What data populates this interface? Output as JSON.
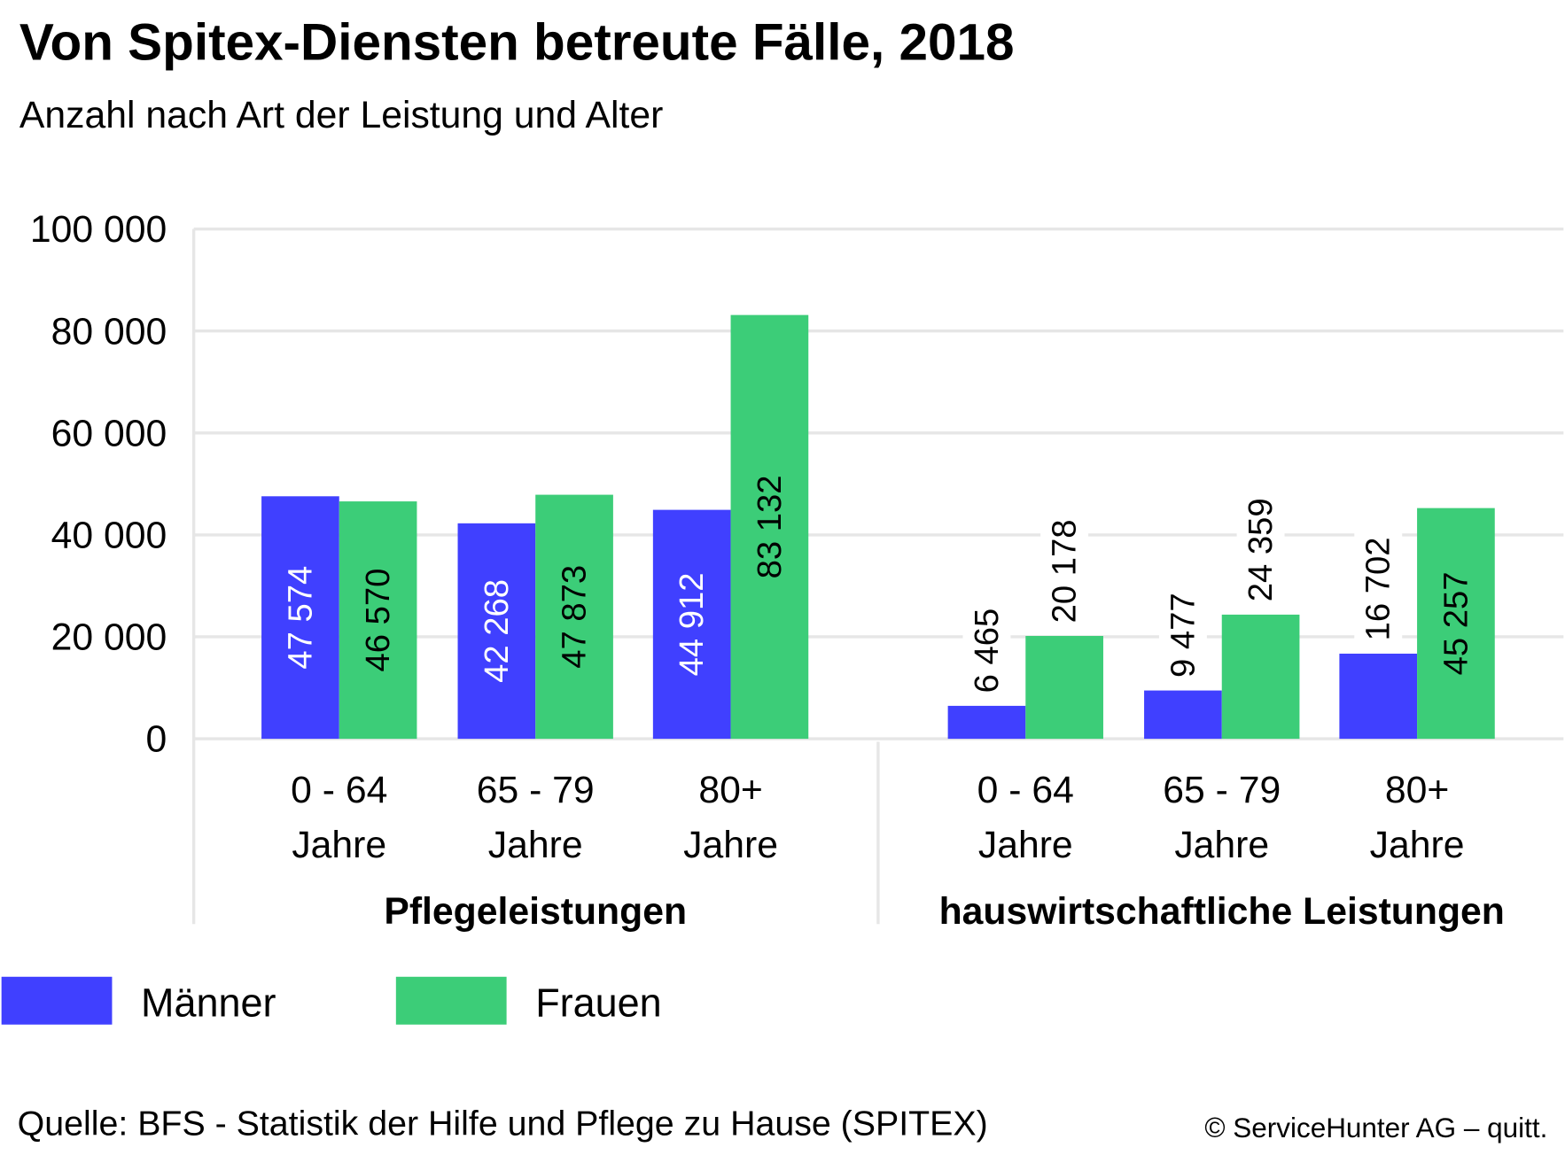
{
  "chart_data": {
    "type": "bar",
    "title": "Von Spitex-Diensten betreute Fälle, 2018",
    "subtitle": "Anzahl nach Art der Leistung und Alter",
    "ylim": [
      0,
      100000
    ],
    "yticks": [
      0,
      20000,
      40000,
      60000,
      80000,
      100000
    ],
    "ytick_labels": [
      "0",
      "20 000",
      "40 000",
      "60 000",
      "80 000",
      "100 000"
    ],
    "grid": true,
    "legend_placement": "bottom-left",
    "groups": [
      {
        "name": "Pflegeleistungen",
        "categories": [
          [
            "0 - 64",
            "Jahre"
          ],
          [
            "65 - 79",
            "Jahre"
          ],
          [
            "80+",
            "Jahre"
          ]
        ]
      },
      {
        "name": "hauswirtschaftliche Leistungen",
        "categories": [
          [
            "0 - 64",
            "Jahre"
          ],
          [
            "65 - 79",
            "Jahre"
          ],
          [
            "80+",
            "Jahre"
          ]
        ]
      }
    ],
    "series": [
      {
        "name": "Männer",
        "color": "#4040ff",
        "values": [
          47574,
          42268,
          44912,
          6465,
          9477,
          16702
        ],
        "labels": [
          "47 574",
          "42 268",
          "44 912",
          "6 465",
          "9 477",
          "16 702"
        ]
      },
      {
        "name": "Frauen",
        "color": "#3ccd78",
        "values": [
          46570,
          47873,
          83132,
          20178,
          24359,
          45257
        ],
        "labels": [
          "46 570",
          "47 873",
          "83 132",
          "20 178",
          "24 359",
          "45 257"
        ]
      }
    ],
    "source": "Quelle: BFS - Statistik der Hilfe und Pflege zu Hause (SPITEX)",
    "credit": "© ServiceHunter AG – quitt."
  }
}
